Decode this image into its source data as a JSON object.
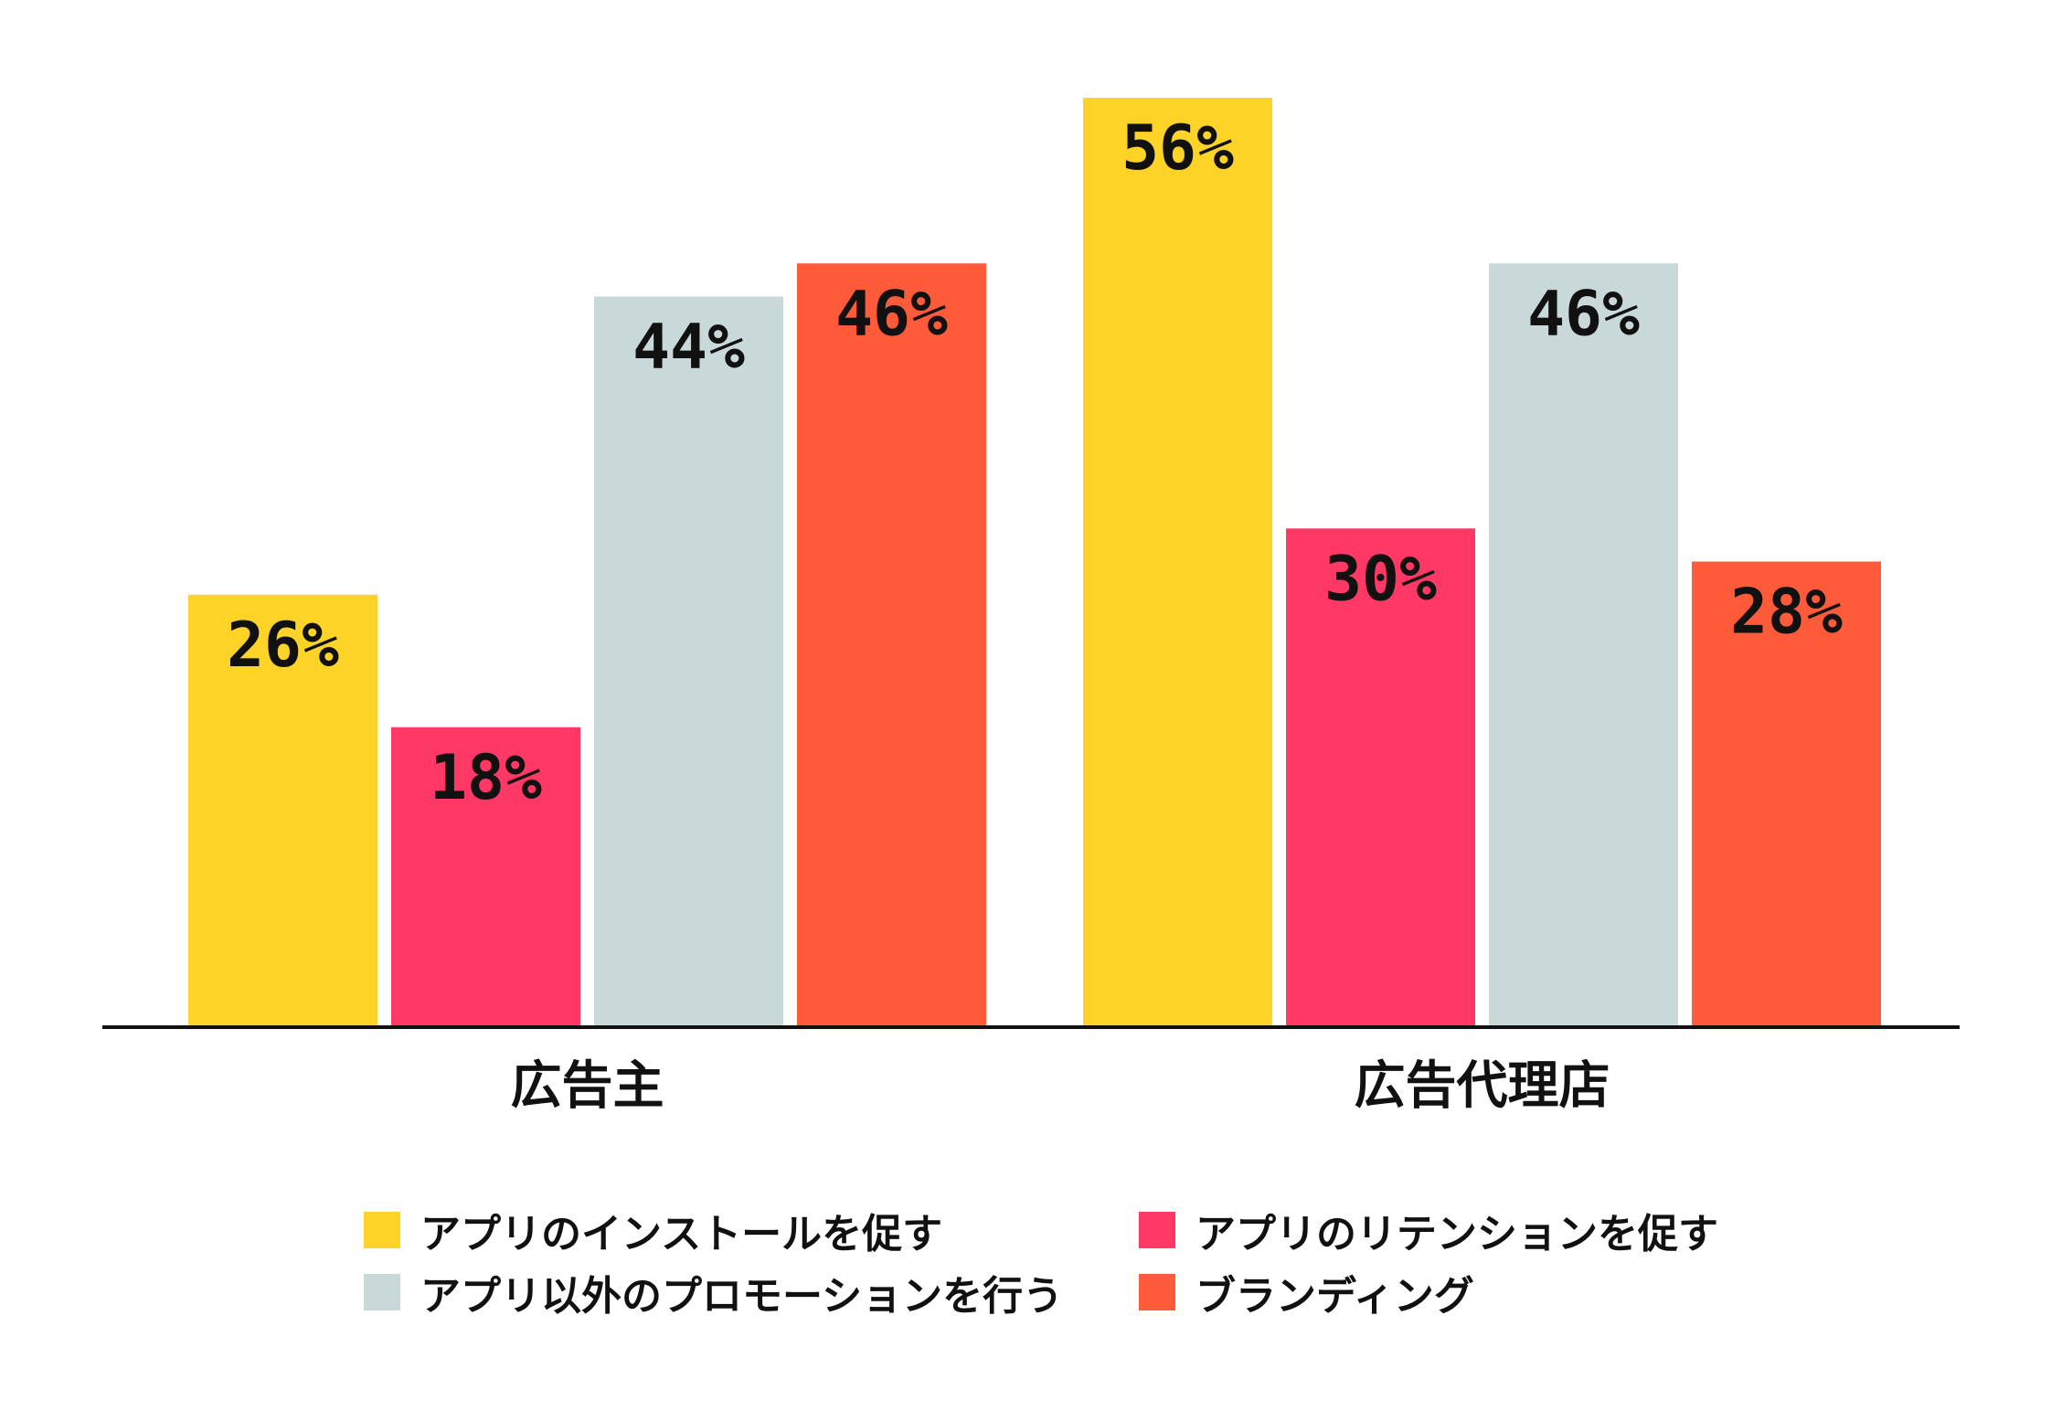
{
  "chart_data": {
    "type": "bar",
    "categories": [
      "広告主",
      "広告代理店"
    ],
    "series": [
      {
        "name": "アプリのインストールを促す",
        "color": "#FDD328",
        "values": [
          26,
          56
        ]
      },
      {
        "name": "アプリのリテンションを促す",
        "color": "#FF3866",
        "values": [
          18,
          30
        ]
      },
      {
        "name": "アプリ以外のプロモーションを行う",
        "color": "#C9D9D9",
        "values": [
          44,
          46
        ]
      },
      {
        "name": "ブランディング",
        "color": "#FF5A3A",
        "values": [
          46,
          28
        ]
      }
    ],
    "value_suffix": "%",
    "ylim": [
      0,
      56
    ],
    "grid": false,
    "legend": "bottom"
  }
}
